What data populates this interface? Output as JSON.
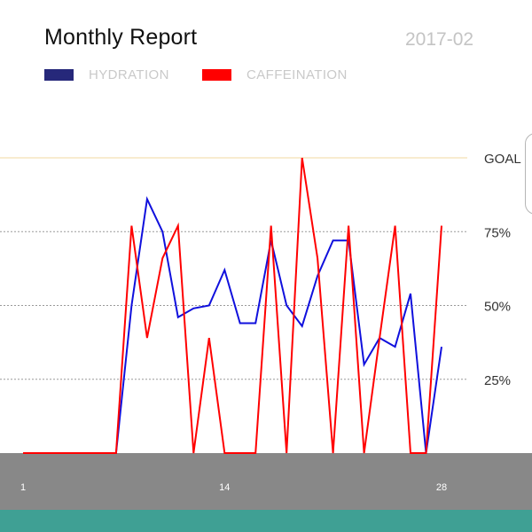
{
  "header": {
    "title": "Monthly Report",
    "date": "2017-02"
  },
  "colors": {
    "hydration": "#1010dd",
    "hydration_legend": "#26287a",
    "caffeination": "#ff0000",
    "goal_line": "#f0d9a0",
    "axis_band": "#888888",
    "footer": "#3fa094"
  },
  "chart_data": {
    "type": "line",
    "title": "Monthly Report",
    "subtitle": "2017-02",
    "x": [
      1,
      2,
      3,
      4,
      5,
      6,
      7,
      8,
      9,
      10,
      11,
      12,
      13,
      14,
      15,
      16,
      17,
      18,
      19,
      20,
      21,
      22,
      23,
      24,
      25,
      26,
      27,
      28
    ],
    "x_tick_labels": [
      "1",
      "14",
      "28"
    ],
    "x_tick_values": [
      1,
      14,
      28
    ],
    "ylim": [
      0,
      100
    ],
    "y_tick_values": [
      25,
      50,
      75,
      100
    ],
    "y_tick_labels": [
      "25%",
      "50%",
      "75%",
      "GOAL"
    ],
    "grid": true,
    "legend_position": "top-left",
    "series": [
      {
        "name": "HYDRATION",
        "values": [
          0,
          0,
          0,
          0,
          0,
          0,
          0,
          50,
          86,
          75,
          46,
          49,
          50,
          62,
          44,
          44,
          72,
          50,
          43,
          60,
          72,
          72,
          30,
          39,
          36,
          54,
          0,
          36
        ]
      },
      {
        "name": "CAFFEINATION",
        "values": [
          0,
          0,
          0,
          0,
          0,
          0,
          0,
          77,
          39,
          66,
          77,
          0,
          39,
          0,
          0,
          0,
          77,
          0,
          100,
          66,
          0,
          77,
          0,
          39,
          77,
          0,
          0,
          77
        ]
      }
    ]
  }
}
